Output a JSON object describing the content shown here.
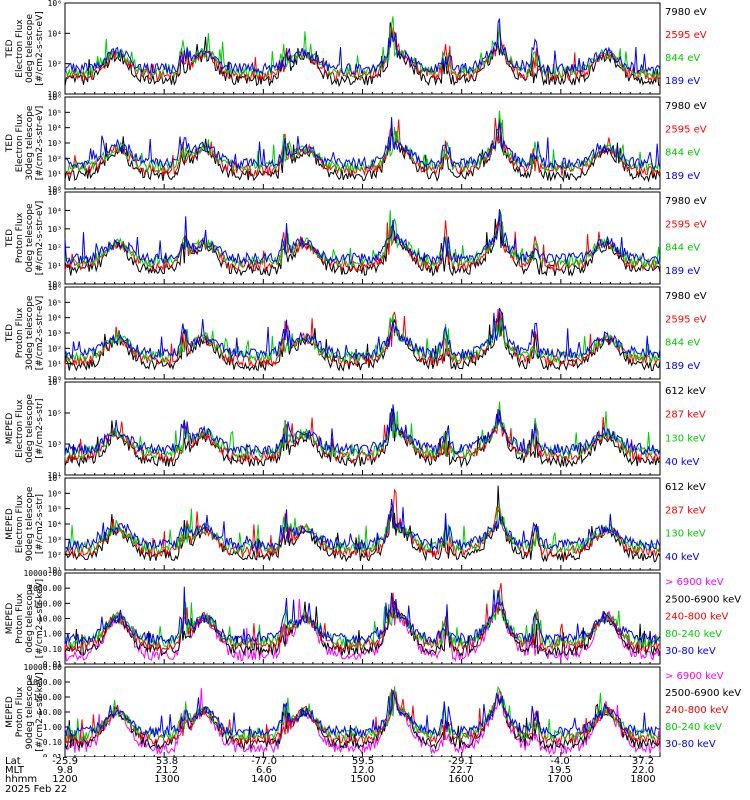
{
  "chart_data": [
    {
      "type": "line",
      "ylabel": [
        "TED",
        "Electron Flux",
        "0deg telescope",
        "[#/cm2-s-str-eV]"
      ],
      "yscale": "log",
      "ylim": [
        1,
        1000000
      ],
      "yticks": [
        "10⁰",
        "10²",
        "10⁴",
        "10⁶"
      ],
      "legend": [
        {
          "label": "7980 eV",
          "color": "#000000"
        },
        {
          "label": "2595 eV",
          "color": "#ff0000"
        },
        {
          "label": "844 eV",
          "color": "#00cc00"
        },
        {
          "label": "189 eV",
          "color": "#0000ff"
        }
      ]
    },
    {
      "type": "line",
      "ylabel": [
        "TED",
        "Electron Flux",
        "30deg telescope",
        "[#/cm2-s-str-eV]"
      ],
      "yscale": "log",
      "ylim": [
        1,
        1000000
      ],
      "yticks": [
        "10⁰",
        "10¹",
        "10²",
        "10³",
        "10⁴",
        "10⁵",
        "10⁶"
      ],
      "legend": [
        {
          "label": "7980 eV",
          "color": "#000000"
        },
        {
          "label": "2595 eV",
          "color": "#ff0000"
        },
        {
          "label": "844 eV",
          "color": "#00cc00"
        },
        {
          "label": "189 eV",
          "color": "#0000ff"
        }
      ]
    },
    {
      "type": "line",
      "ylabel": [
        "TED",
        "Proton Flux",
        "0deg telescope",
        "[#/cm2-s-str-eV]"
      ],
      "yscale": "log",
      "ylim": [
        1,
        100000
      ],
      "yticks": [
        "10⁰",
        "10¹",
        "10²",
        "10³",
        "10⁴",
        "10⁵"
      ],
      "legend": [
        {
          "label": "7980 eV",
          "color": "#000000"
        },
        {
          "label": "2595 eV",
          "color": "#ff0000"
        },
        {
          "label": "844 eV",
          "color": "#00cc00"
        },
        {
          "label": "189 eV",
          "color": "#0000ff"
        }
      ]
    },
    {
      "type": "line",
      "ylabel": [
        "TED",
        "Proton Flux",
        "30deg telescope",
        "[#/cm2-s-str-eV]"
      ],
      "yscale": "log",
      "ylim": [
        1,
        1000000
      ],
      "yticks": [
        "10⁰",
        "10¹",
        "10²",
        "10³",
        "10⁴",
        "10⁵",
        "10⁶"
      ],
      "legend": [
        {
          "label": "7980 eV",
          "color": "#000000"
        },
        {
          "label": "2595 eV",
          "color": "#ff0000"
        },
        {
          "label": "844 eV",
          "color": "#00cc00"
        },
        {
          "label": "189 eV",
          "color": "#0000ff"
        }
      ]
    },
    {
      "type": "line",
      "ylabel": [
        "MEPED",
        "Electron Flux",
        "0deg telescope",
        "[#/cm2-s-str]"
      ],
      "yscale": "log",
      "ylim": [
        10,
        10000000
      ],
      "yticks": [
        "10¹",
        "10³",
        "10⁵",
        "10⁷"
      ],
      "legend": [
        {
          "label": "612 keV",
          "color": "#000000"
        },
        {
          "label": "287 keV",
          "color": "#ff0000"
        },
        {
          "label": "130 keV",
          "color": "#00cc00"
        },
        {
          "label": "40 keV",
          "color": "#0000ff"
        }
      ]
    },
    {
      "type": "line",
      "ylabel": [
        "MEPED",
        "Electron Flux",
        "90deg telescope",
        "[#/cm2-s-str]"
      ],
      "yscale": "log",
      "ylim": [
        10,
        10000000
      ],
      "yticks": [
        "10¹",
        "10²",
        "10³",
        "10⁴",
        "10⁵",
        "10⁶",
        "10⁷"
      ],
      "legend": [
        {
          "label": "612 keV",
          "color": "#000000"
        },
        {
          "label": "287 keV",
          "color": "#ff0000"
        },
        {
          "label": "130 keV",
          "color": "#00cc00"
        },
        {
          "label": "40 keV",
          "color": "#0000ff"
        }
      ]
    },
    {
      "type": "line",
      "ylabel": [
        "MEPED",
        "Proton Flux",
        "0deg telescope",
        "[#/cm2-s-str-keV]"
      ],
      "yscale": "log",
      "ylim": [
        0.01,
        10000
      ],
      "yticks": [
        "0.01",
        "0.10",
        "1.00",
        "10.00",
        "100.00",
        "1000.00",
        "10000.00"
      ],
      "legend": [
        {
          "label": "> 6900 keV",
          "color": "#ff00ff"
        },
        {
          "label": "2500-6900 keV",
          "color": "#000000"
        },
        {
          "label": "240-800 keV",
          "color": "#ff0000"
        },
        {
          "label": "80-240 keV",
          "color": "#00cc00"
        },
        {
          "label": "30-80 keV",
          "color": "#0000ff"
        }
      ]
    },
    {
      "type": "line",
      "ylabel": [
        "MEPED",
        "Proton Flux",
        "90deg telescope",
        "[#/cm2-s-str-keV]"
      ],
      "yscale": "log",
      "ylim": [
        0.01,
        10000
      ],
      "yticks": [
        "0.01",
        "0.10",
        "1.00",
        "10.00",
        "100.00",
        "1000.00",
        "10000.00"
      ],
      "legend": [
        {
          "label": "> 6900 keV",
          "color": "#ff00ff"
        },
        {
          "label": "2500-6900 keV",
          "color": "#000000"
        },
        {
          "label": "240-800 keV",
          "color": "#ff0000"
        },
        {
          "label": "80-240 keV",
          "color": "#00cc00"
        },
        {
          "label": "30-80 keV",
          "color": "#0000ff"
        }
      ]
    }
  ],
  "time_axis": {
    "rows": [
      {
        "name": "Lat",
        "values": [
          "-25.9",
          "53.8",
          "-77.0",
          "59.5",
          "-29.1",
          "-4.0",
          "37.2"
        ]
      },
      {
        "name": "MLT",
        "values": [
          "9.8",
          "21.2",
          "6.6",
          "12.0",
          "22.7",
          "19.5",
          "22.0"
        ]
      },
      {
        "name": "hhmm",
        "values": [
          "1200",
          "1300",
          "1400",
          "1500",
          "1600",
          "1700",
          "1800"
        ]
      }
    ],
    "date": "2025 Feb 22"
  }
}
